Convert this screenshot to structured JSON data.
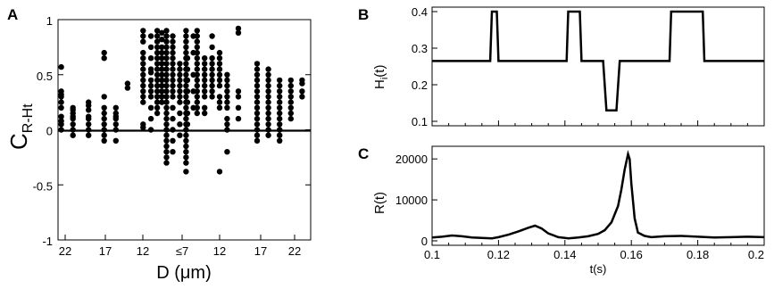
{
  "chart_data": [
    {
      "panel": "A",
      "type": "scatter",
      "ylabel_main": "C",
      "ylabel_sub": "R-Ht",
      "xlabel": "D (μm)",
      "ylim": [
        -1,
        1
      ],
      "yticks": [
        "-1",
        "-0.5",
        "0",
        "0.5",
        "1"
      ],
      "xticks": [
        "22",
        "17",
        "12",
        "≤7",
        "12",
        "17",
        "22"
      ],
      "reference_line_y": 0,
      "grid": false,
      "columns": [
        {
          "x": 22.5,
          "y": [
            0.57,
            0.35,
            0.32,
            0.3,
            0.25,
            0.2,
            0.12,
            0.08,
            0.05,
            0.0
          ]
        },
        {
          "x": 21,
          "y": [
            0.18,
            0.12,
            0.1,
            0.05,
            0.0,
            -0.05,
            0.15,
            0.2
          ]
        },
        {
          "x": 19,
          "y": [
            0.25,
            0.22,
            0.18,
            0.1,
            0.05,
            0.0,
            -0.05,
            0.12
          ]
        },
        {
          "x": 17,
          "y": [
            0.7,
            0.65,
            0.3,
            0.15,
            0.1,
            0.05,
            0.0,
            -0.05,
            -0.1,
            0.2
          ]
        },
        {
          "x": 15.5,
          "y": [
            0.15,
            0.12,
            0.1,
            0.05,
            0.0,
            -0.1,
            0.2
          ]
        },
        {
          "x": 14,
          "y": [
            0.42,
            0.38
          ]
        },
        {
          "x": 12,
          "y": [
            0.9,
            0.85,
            0.8,
            0.7,
            0.65,
            0.6,
            0.55,
            0.5,
            0.45,
            0.4,
            0.35,
            0.3,
            0.25,
            0.05,
            0.02
          ]
        },
        {
          "x": 11,
          "y": [
            0.85,
            0.75,
            0.65,
            0.55,
            0.45,
            0.35,
            0.3,
            0.2,
            0.1,
            0.0,
            0.52,
            0.4
          ]
        },
        {
          "x": 10.2,
          "y": [
            0.9,
            0.85,
            0.8,
            0.75,
            0.7,
            0.65,
            0.6,
            0.55,
            0.5,
            0.45,
            0.4,
            0.35,
            0.3,
            0.25,
            0.2,
            0.15
          ]
        },
        {
          "x": 9.6,
          "y": [
            0.88,
            0.82,
            0.75,
            0.7,
            0.65,
            0.6,
            0.55,
            0.5,
            0.45,
            0.4,
            0.35,
            0.3,
            0.25
          ]
        },
        {
          "x": 9,
          "y": [
            0.9,
            0.85,
            0.8,
            0.75,
            0.7,
            0.65,
            0.6,
            0.55,
            0.5,
            0.45,
            0.4,
            0.35,
            0.3,
            0.25,
            0.2,
            0.15,
            0.1,
            0.05,
            0.0,
            -0.05,
            -0.1,
            -0.15,
            -0.2,
            -0.25,
            -0.3
          ]
        },
        {
          "x": 8.2,
          "y": [
            0.85,
            0.8,
            0.75,
            0.7,
            0.65,
            0.6,
            0.55,
            0.5,
            0.45,
            0.4,
            0.35,
            0.3,
            0.2,
            0.1,
            0.0,
            -0.1,
            -0.2
          ]
        },
        {
          "x": 7.3,
          "y": [
            0.6,
            0.55,
            0.5,
            0.45,
            0.4,
            0.35,
            0.3,
            0.25,
            0.15,
            0.05,
            -0.05
          ]
        },
        {
          "x": 6.5,
          "y": [
            0.9,
            0.85,
            0.8,
            0.75,
            0.7,
            0.65,
            0.6,
            0.55,
            0.5,
            0.45,
            0.4,
            0.35,
            0.3,
            0.25,
            0.2,
            0.15,
            0.1,
            0.05,
            0.0,
            -0.05,
            -0.1,
            -0.15,
            -0.2,
            -0.25,
            -0.3,
            -0.38
          ]
        },
        {
          "x": 7.7,
          "y": [
            0.65,
            0.55,
            0.45,
            0.35,
            0.25,
            0.15,
            0.05
          ]
        },
        {
          "x": 8.5,
          "y": [
            0.85,
            0.7,
            0.5,
            0.35,
            0.2
          ]
        },
        {
          "x": 9,
          "y": [
            0.9,
            0.85,
            0.8,
            0.75,
            0.7,
            0.65,
            0.6,
            0.55,
            0.5,
            0.45,
            0.4,
            0.35,
            0.3,
            0.25,
            0.2,
            0.15
          ]
        },
        {
          "x": 10,
          "y": [
            0.65,
            0.6,
            0.55,
            0.5,
            0.45,
            0.4,
            0.35,
            0.3,
            0.2,
            0.15
          ]
        },
        {
          "x": 11,
          "y": [
            0.85,
            0.75,
            0.65,
            0.6,
            0.55,
            0.5,
            0.45,
            0.4,
            0.35,
            0.3
          ]
        },
        {
          "x": 12,
          "y": [
            0.7,
            0.65,
            0.6,
            0.55,
            0.5,
            0.45,
            0.4,
            0.3,
            0.25,
            0.2,
            -0.38
          ]
        },
        {
          "x": 13,
          "y": [
            0.5,
            0.45,
            0.4,
            0.35,
            0.3,
            0.25,
            0.2,
            0.1,
            0.05,
            0.0,
            -0.2
          ]
        },
        {
          "x": 14.5,
          "y": [
            0.92,
            0.88,
            0.35,
            0.3,
            0.2,
            0.1
          ]
        },
        {
          "x": 17,
          "y": [
            0.6,
            0.55,
            0.5,
            0.45,
            0.4,
            0.35,
            0.3,
            0.25,
            0.2,
            0.15,
            0.1,
            0.05,
            0.0,
            -0.05,
            -0.1
          ]
        },
        {
          "x": 18.5,
          "y": [
            0.55,
            0.5,
            0.45,
            0.4,
            0.35,
            0.3,
            0.25,
            0.2,
            0.15,
            0.1,
            0.05,
            0.0,
            -0.05
          ]
        },
        {
          "x": 20,
          "y": [
            0.45,
            0.4,
            0.35,
            0.3,
            0.25,
            0.2,
            0.15,
            0.1,
            0.05,
            0.0,
            -0.05,
            -0.1
          ]
        },
        {
          "x": 21.5,
          "y": [
            0.45,
            0.4,
            0.35,
            0.3,
            0.25,
            0.2,
            0.15,
            0.1
          ]
        },
        {
          "x": 23,
          "y": [
            0.45,
            0.42,
            0.35,
            0.3
          ]
        }
      ]
    },
    {
      "panel": "B",
      "type": "line",
      "ylabel_main": "H",
      "ylabel_sub": "i",
      "ylabel_suffix": "(t)",
      "xlim": [
        0.1,
        0.2
      ],
      "ylim": [
        0.1,
        0.4
      ],
      "yticks": [
        "0.1",
        "0.2",
        "0.3",
        "0.4"
      ],
      "x": [
        0.1,
        0.1175,
        0.118,
        0.1195,
        0.12,
        0.1405,
        0.141,
        0.1445,
        0.145,
        0.1515,
        0.1525,
        0.1555,
        0.1565,
        0.1715,
        0.172,
        0.1815,
        0.182,
        0.2
      ],
      "y": [
        0.265,
        0.265,
        0.4,
        0.4,
        0.265,
        0.265,
        0.4,
        0.4,
        0.265,
        0.265,
        0.13,
        0.13,
        0.265,
        0.265,
        0.4,
        0.4,
        0.265,
        0.265
      ]
    },
    {
      "panel": "C",
      "type": "line",
      "ylabel_main": "R(t)",
      "xlabel": "t(s)",
      "xlim": [
        0.1,
        0.2
      ],
      "ylim": [
        0,
        22000
      ],
      "yticks": [
        "0",
        "10000",
        "20000"
      ],
      "xticks": [
        "0.1",
        "0.12",
        "0.14",
        "0.16",
        "0.18",
        "0.2"
      ],
      "x": [
        0.1,
        0.103,
        0.106,
        0.109,
        0.112,
        0.115,
        0.118,
        0.12,
        0.123,
        0.126,
        0.129,
        0.131,
        0.133,
        0.135,
        0.138,
        0.141,
        0.144,
        0.147,
        0.15,
        0.152,
        0.154,
        0.156,
        0.157,
        0.158,
        0.159,
        0.1595,
        0.16,
        0.161,
        0.162,
        0.164,
        0.166,
        0.17,
        0.175,
        0.18,
        0.185,
        0.19,
        0.195,
        0.2
      ],
      "y": [
        800,
        1000,
        1300,
        1100,
        800,
        700,
        600,
        900,
        1500,
        2300,
        3200,
        3700,
        3000,
        1800,
        900,
        600,
        800,
        1100,
        1700,
        2600,
        4500,
        8500,
        12500,
        17500,
        21200,
        20000,
        14000,
        5500,
        2000,
        1200,
        900,
        1100,
        1200,
        1000,
        800,
        900,
        1000,
        900
      ]
    }
  ]
}
